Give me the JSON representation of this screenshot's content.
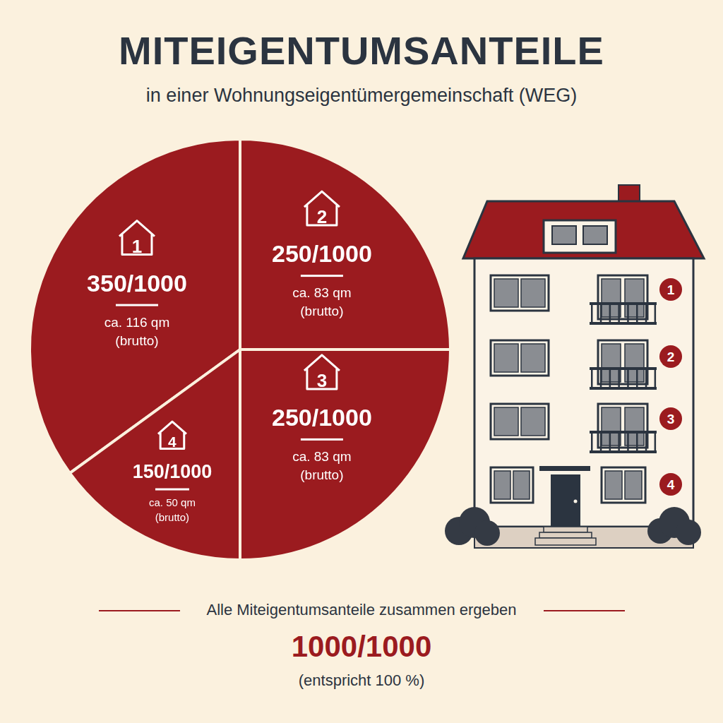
{
  "chart_data": {
    "type": "pie",
    "title": "MITEIGENTUMSANTEILE",
    "subtitle": "in einer Wohnungseigentümergemeinschaft (WEG)",
    "categories": [
      "1",
      "2",
      "3",
      "4"
    ],
    "values": [
      350,
      250,
      250,
      150
    ],
    "value_labels": [
      "350/1000",
      "250/1000",
      "250/1000",
      "150/1000"
    ],
    "areas": [
      "ca. 116 qm",
      "ca. 83 qm",
      "ca. 83 qm",
      "ca. 50 qm"
    ],
    "area_note": "(brutto)",
    "color": "#9b1b1f",
    "data_labels": true,
    "total_text": "Alle Miteigentumsanteile zusammen ergeben",
    "total_label": "1000/1000",
    "total_note": "(entspricht 100 %)"
  }
}
